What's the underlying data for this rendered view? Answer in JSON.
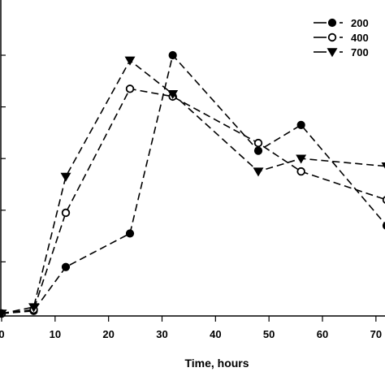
{
  "chart_data": {
    "type": "line",
    "title": "",
    "xlabel": "Time, hours",
    "ylabel": "",
    "xlim": [
      0,
      72
    ],
    "ylim": [
      0,
      100
    ],
    "x_ticks": [
      "0",
      "10",
      "20",
      "30",
      "40",
      "50",
      "60",
      "70"
    ],
    "y_ticks": [],
    "grid": false,
    "legend_position": "top-right",
    "series": [
      {
        "name": "200",
        "marker": "filled-circle",
        "x": [
          0,
          6,
          12,
          24,
          32,
          48,
          56,
          72
        ],
        "y": [
          0,
          1,
          18,
          31,
          100,
          63,
          73,
          34
        ]
      },
      {
        "name": "400",
        "marker": "open-circle",
        "x": [
          0,
          6,
          12,
          24,
          32,
          48,
          56,
          72
        ],
        "y": [
          0,
          1.5,
          39,
          87,
          84,
          66,
          55,
          44
        ]
      },
      {
        "name": "700",
        "marker": "down-triangle",
        "x": [
          0,
          6,
          12,
          24,
          32,
          48,
          56,
          72
        ],
        "y": [
          0,
          2.5,
          53,
          98,
          85,
          55,
          60,
          57
        ]
      }
    ]
  }
}
